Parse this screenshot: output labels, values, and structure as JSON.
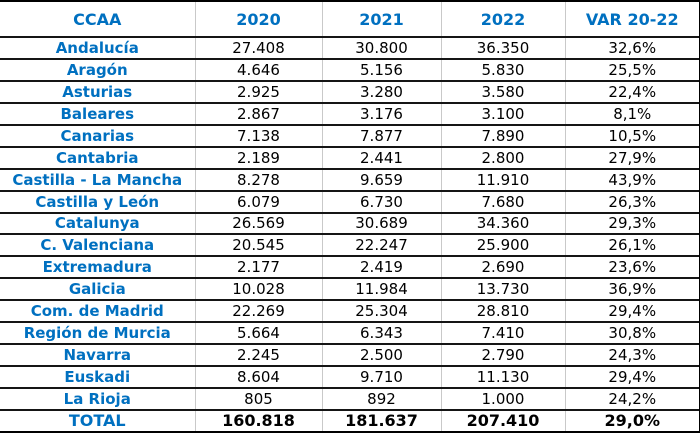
{
  "colors": {
    "accent_blue": "#0070c0",
    "border_dark": "#000000",
    "border_light": "#c9c9c9",
    "value_text": "#000000",
    "background": "#ffffff"
  },
  "chart_data": {
    "type": "table",
    "title": "",
    "columns": [
      "CCAA",
      "2020",
      "2021",
      "2022",
      "VAR 20-22"
    ],
    "rows": [
      [
        "Andalucía",
        "27.408",
        "30.800",
        "36.350",
        "32,6%"
      ],
      [
        "Aragón",
        "4.646",
        "5.156",
        "5.830",
        "25,5%"
      ],
      [
        "Asturias",
        "2.925",
        "3.280",
        "3.580",
        "22,4%"
      ],
      [
        "Baleares",
        "2.867",
        "3.176",
        "3.100",
        "8,1%"
      ],
      [
        "Canarias",
        "7.138",
        "7.877",
        "7.890",
        "10,5%"
      ],
      [
        "Cantabria",
        "2.189",
        "2.441",
        "2.800",
        "27,9%"
      ],
      [
        "Castilla - La Mancha",
        "8.278",
        "9.659",
        "11.910",
        "43,9%"
      ],
      [
        "Castilla y León",
        "6.079",
        "6.730",
        "7.680",
        "26,3%"
      ],
      [
        "Catalunya",
        "26.569",
        "30.689",
        "34.360",
        "29,3%"
      ],
      [
        "C. Valenciana",
        "20.545",
        "22.247",
        "25.900",
        "26,1%"
      ],
      [
        "Extremadura",
        "2.177",
        "2.419",
        "2.690",
        "23,6%"
      ],
      [
        "Galicia",
        "10.028",
        "11.984",
        "13.730",
        "36,9%"
      ],
      [
        "Com. de Madrid",
        "22.269",
        "25.304",
        "28.810",
        "29,4%"
      ],
      [
        "Región de Murcia",
        "5.664",
        "6.343",
        "7.410",
        "30,8%"
      ],
      [
        "Navarra",
        "2.245",
        "2.500",
        "2.790",
        "24,3%"
      ],
      [
        "Euskadi",
        "8.604",
        "9.710",
        "11.130",
        "29,4%"
      ],
      [
        "La Rioja",
        "805",
        "892",
        "1.000",
        "24,2%"
      ]
    ],
    "total_row": [
      "TOTAL",
      "160.818",
      "181.637",
      "207.410",
      "29,0%"
    ]
  }
}
